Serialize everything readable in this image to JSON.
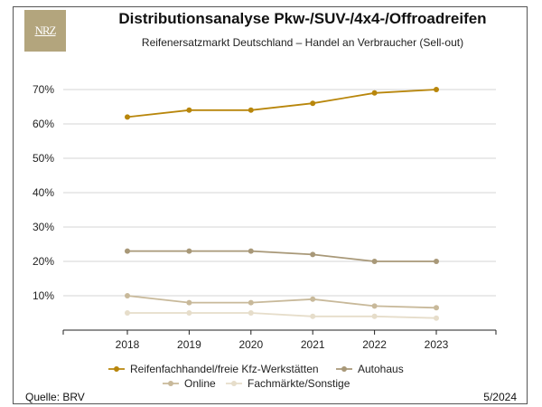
{
  "header": {
    "logo_text": "NRZ",
    "title": "Distributionsanalyse Pkw-/SUV-/4x4-/Offroadreifen",
    "subtitle": "Reifenersatzmarkt Deutschland – Handel an Verbraucher (Sell-out)"
  },
  "footer": {
    "source": "Quelle: BRV",
    "date": "5/2024"
  },
  "chart_data": {
    "type": "line",
    "title": "Distributionsanalyse Pkw-/SUV-/4x4-/Offroadreifen",
    "subtitle": "Reifenersatzmarkt Deutschland – Handel an Verbraucher (Sell-out)",
    "x": [
      "2018",
      "2019",
      "2020",
      "2021",
      "2022",
      "2023"
    ],
    "ylim": [
      0,
      70
    ],
    "yticks": [
      10,
      20,
      30,
      40,
      50,
      60,
      70
    ],
    "ytick_labels": [
      "10%",
      "20%",
      "30%",
      "40%",
      "50%",
      "60%",
      "70%"
    ],
    "grid": true,
    "legend_position": "bottom",
    "series": [
      {
        "name": "Reifenfachhandel/freie Kfz-Werkstätten",
        "color": "#b8860b",
        "values": [
          62,
          64,
          64,
          66,
          69,
          70
        ]
      },
      {
        "name": "Autohaus",
        "color": "#a89878",
        "values": [
          23,
          23,
          23,
          22,
          20,
          20
        ]
      },
      {
        "name": "Online",
        "color": "#c8b99a",
        "values": [
          10,
          8,
          8,
          9,
          7,
          6.5
        ]
      },
      {
        "name": "Fachmärkte/Sonstige",
        "color": "#e6ddca",
        "values": [
          5,
          5,
          5,
          4,
          4,
          3.5
        ]
      }
    ]
  }
}
